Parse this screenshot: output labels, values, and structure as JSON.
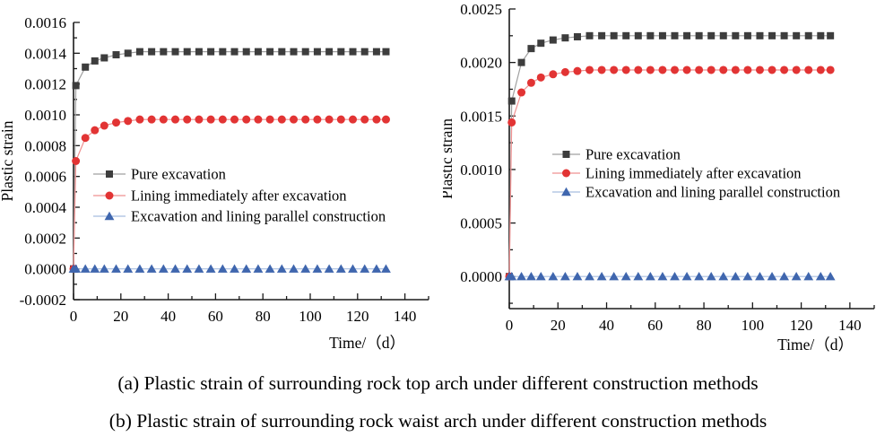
{
  "figure": {
    "captions": [
      "(a) Plastic strain of surrounding rock top arch under different construction methods",
      "(b) Plastic strain of surrounding rock waist arch under different construction methods"
    ]
  },
  "style": {
    "axis_color": "#1a1a1a",
    "text_color": "#000000",
    "background": "#ffffff"
  },
  "chart_data": [
    {
      "id": "top-arch",
      "type": "line",
      "title": "",
      "xlabel": "Time/（d）",
      "ylabel": "Plastic strain",
      "xlim": [
        0,
        150
      ],
      "ylim": [
        -0.0002,
        0.0016
      ],
      "x_ticks": [
        0,
        20,
        40,
        60,
        80,
        100,
        120,
        140
      ],
      "x_tick_labels": [
        "0",
        "20",
        "40",
        "60",
        "80",
        "100",
        "120",
        "140"
      ],
      "x_minor_step": 10,
      "y_ticks": [
        -0.0002,
        0.0,
        0.0002,
        0.0004,
        0.0006,
        0.0008,
        0.001,
        0.0012,
        0.0014,
        0.0016
      ],
      "y_tick_labels": [
        "-0.0002",
        "0.0000",
        "0.0002",
        "0.0004",
        "0.0006",
        "0.0008",
        "0.0010",
        "0.0012",
        "0.0014",
        "0.0016"
      ],
      "y_minor_step": 0.0001,
      "grid": false,
      "legend_position": "inside-left-middle",
      "x": [
        0,
        1,
        5,
        9,
        13,
        18,
        23,
        28,
        33,
        38,
        43,
        48,
        53,
        58,
        63,
        68,
        73,
        78,
        83,
        88,
        93,
        98,
        103,
        108,
        113,
        118,
        123,
        128,
        132
      ],
      "series": [
        {
          "name": "Pure excavation",
          "marker": "square",
          "marker_color": "#3d3d3d",
          "line_color": "#a0a0a0",
          "values": [
            0,
            0.00119,
            0.00131,
            0.00135,
            0.00137,
            0.00139,
            0.0014,
            0.00141,
            0.00141,
            0.00141,
            0.00141,
            0.00141,
            0.00141,
            0.00141,
            0.00141,
            0.00141,
            0.00141,
            0.00141,
            0.00141,
            0.00141,
            0.00141,
            0.00141,
            0.00141,
            0.00141,
            0.00141,
            0.00141,
            0.00141,
            0.00141,
            0.00141
          ]
        },
        {
          "name": "Lining immediately after excavation",
          "marker": "circle",
          "marker_color": "#e23434",
          "line_color": "#ef9191",
          "values": [
            0,
            0.0007,
            0.00085,
            0.0009,
            0.00093,
            0.00095,
            0.00096,
            0.00097,
            0.00097,
            0.00097,
            0.00097,
            0.00097,
            0.00097,
            0.00097,
            0.00097,
            0.00097,
            0.00097,
            0.00097,
            0.00097,
            0.00097,
            0.00097,
            0.00097,
            0.00097,
            0.00097,
            0.00097,
            0.00097,
            0.00097,
            0.00097,
            0.00097
          ]
        },
        {
          "name": "Excavation and lining parallel construction",
          "marker": "triangle",
          "marker_color": "#3f66ae",
          "line_color": "#a7bedf",
          "values": [
            0,
            0,
            0,
            0,
            0,
            0,
            0,
            0,
            0,
            0,
            0,
            0,
            0,
            0,
            0,
            0,
            0,
            0,
            0,
            0,
            0,
            0,
            0,
            0,
            0,
            0,
            0,
            0,
            0
          ]
        }
      ]
    },
    {
      "id": "waist-arch",
      "type": "line",
      "title": "",
      "xlabel": "Time/（d）",
      "ylabel": "Plastic strain",
      "xlim": [
        0,
        150
      ],
      "ylim": [
        -0.0003,
        0.0025
      ],
      "x_ticks": [
        0,
        20,
        40,
        60,
        80,
        100,
        120,
        140
      ],
      "x_tick_labels": [
        "0",
        "20",
        "40",
        "60",
        "80",
        "100",
        "120",
        "140"
      ],
      "x_minor_step": 10,
      "y_ticks": [
        0.0,
        0.0005,
        0.001,
        0.0015,
        0.002,
        0.0025
      ],
      "y_tick_labels": [
        "0.0000",
        "0.0005",
        "0.0010",
        "0.0015",
        "0.0020",
        "0.0025"
      ],
      "y_minor_step": 0.00025,
      "grid": false,
      "legend_position": "inside-left-middle",
      "x": [
        0,
        1,
        5,
        9,
        13,
        18,
        23,
        28,
        33,
        38,
        43,
        48,
        53,
        58,
        63,
        68,
        73,
        78,
        83,
        88,
        93,
        98,
        103,
        108,
        113,
        118,
        123,
        128,
        132
      ],
      "series": [
        {
          "name": "Pure excavation",
          "marker": "square",
          "marker_color": "#3d3d3d",
          "line_color": "#a0a0a0",
          "values": [
            0,
            0.00164,
            0.002,
            0.00213,
            0.00218,
            0.00221,
            0.00223,
            0.00224,
            0.00225,
            0.00225,
            0.00225,
            0.00225,
            0.00225,
            0.00225,
            0.00225,
            0.00225,
            0.00225,
            0.00225,
            0.00225,
            0.00225,
            0.00225,
            0.00225,
            0.00225,
            0.00225,
            0.00225,
            0.00225,
            0.00225,
            0.00225,
            0.00225
          ]
        },
        {
          "name": "Lining immediately after excavation",
          "marker": "circle",
          "marker_color": "#e23434",
          "line_color": "#ef9191",
          "values": [
            0,
            0.00144,
            0.00172,
            0.00181,
            0.00186,
            0.00189,
            0.00191,
            0.00192,
            0.00193,
            0.00193,
            0.00193,
            0.00193,
            0.00193,
            0.00193,
            0.00193,
            0.00193,
            0.00193,
            0.00193,
            0.00193,
            0.00193,
            0.00193,
            0.00193,
            0.00193,
            0.00193,
            0.00193,
            0.00193,
            0.00193,
            0.00193,
            0.00193
          ]
        },
        {
          "name": "Excavation and lining parallel construction",
          "marker": "triangle",
          "marker_color": "#3f66ae",
          "line_color": "#a7bedf",
          "values": [
            0,
            0,
            0,
            0,
            0,
            0,
            0,
            0,
            0,
            0,
            0,
            0,
            0,
            0,
            0,
            0,
            0,
            0,
            0,
            0,
            0,
            0,
            0,
            0,
            0,
            0,
            0,
            0,
            0
          ]
        }
      ]
    }
  ]
}
